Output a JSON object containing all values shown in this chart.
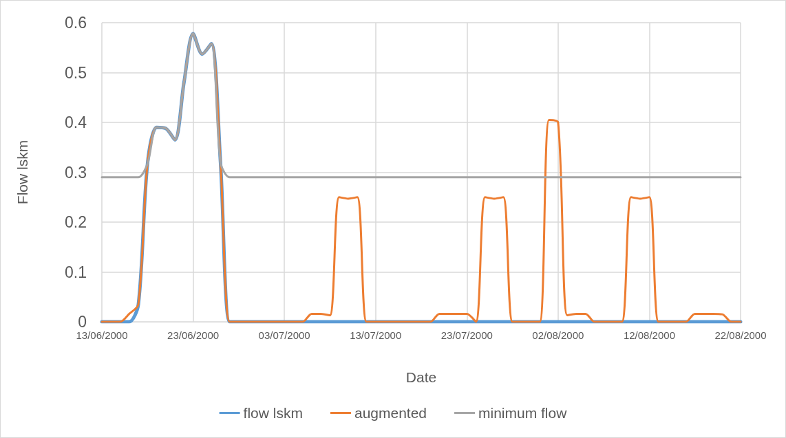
{
  "chart_data": {
    "type": "line",
    "xlabel": "Date",
    "ylabel": "Flow lskm",
    "x": [
      "2000-06-13",
      "2000-06-14",
      "2000-06-15",
      "2000-06-16",
      "2000-06-17",
      "2000-06-18",
      "2000-06-19",
      "2000-06-20",
      "2000-06-21",
      "2000-06-22",
      "2000-06-23",
      "2000-06-24",
      "2000-06-25",
      "2000-06-26",
      "2000-06-27",
      "2000-06-28",
      "2000-06-29",
      "2000-06-30",
      "2000-07-01",
      "2000-07-02",
      "2000-07-03",
      "2000-07-04",
      "2000-07-05",
      "2000-07-06",
      "2000-07-07",
      "2000-07-08",
      "2000-07-09",
      "2000-07-10",
      "2000-07-11",
      "2000-07-12",
      "2000-07-13",
      "2000-07-14",
      "2000-07-15",
      "2000-07-16",
      "2000-07-17",
      "2000-07-18",
      "2000-07-19",
      "2000-07-20",
      "2000-07-21",
      "2000-07-22",
      "2000-07-23",
      "2000-07-24",
      "2000-07-25",
      "2000-07-26",
      "2000-07-27",
      "2000-07-28",
      "2000-07-29",
      "2000-07-30",
      "2000-07-31",
      "2000-08-01",
      "2000-08-02",
      "2000-08-03",
      "2000-08-04",
      "2000-08-05",
      "2000-08-06",
      "2000-08-07",
      "2000-08-08",
      "2000-08-09",
      "2000-08-10",
      "2000-08-11",
      "2000-08-12",
      "2000-08-13",
      "2000-08-14",
      "2000-08-15",
      "2000-08-16",
      "2000-08-17",
      "2000-08-18",
      "2000-08-19",
      "2000-08-20",
      "2000-08-21",
      "2000-08-22"
    ],
    "series": [
      {
        "name": "flow lskm",
        "color": "#5b9bd5",
        "values": [
          0,
          0,
          0,
          0,
          0.035,
          0.317,
          0.39,
          0.388,
          0.365,
          0.48,
          0.578,
          0.537,
          0.558,
          0.32,
          0,
          0,
          0,
          0,
          0,
          0,
          0,
          0,
          0,
          0,
          0,
          0,
          0,
          0,
          0,
          0,
          0,
          0,
          0,
          0,
          0,
          0,
          0,
          0,
          0,
          0,
          0,
          0,
          0,
          0,
          0,
          0,
          0,
          0,
          0,
          0,
          0,
          0,
          0,
          0,
          0,
          0,
          0,
          0,
          0,
          0,
          0,
          0,
          0,
          0,
          0,
          0,
          0,
          0,
          0,
          0,
          0
        ]
      },
      {
        "name": "augmented",
        "color": "#ed7d31",
        "values": [
          0,
          0,
          0,
          0.016,
          0.035,
          0.317,
          0.39,
          0.388,
          0.365,
          0.48,
          0.578,
          0.537,
          0.558,
          0.32,
          0,
          0,
          0,
          0,
          0,
          0,
          0,
          0,
          0,
          0.016,
          0.016,
          0.013,
          0.25,
          0.247,
          0.25,
          0,
          0,
          0,
          0,
          0,
          0,
          0,
          0,
          0.016,
          0.016,
          0.016,
          0.016,
          0,
          0.25,
          0.247,
          0.25,
          0,
          0,
          0,
          0,
          0.405,
          0.4,
          0.013,
          0.016,
          0.016,
          0,
          0,
          0,
          0,
          0.25,
          0.247,
          0.25,
          0,
          0,
          0,
          0,
          0.016,
          0.016,
          0.016,
          0.015,
          0,
          0
        ]
      },
      {
        "name": "minimum flow",
        "color": "#a5a5a5",
        "values": [
          0.29,
          0.29,
          0.29,
          0.29,
          0.29,
          0.317,
          0.39,
          0.388,
          0.365,
          0.48,
          0.578,
          0.537,
          0.558,
          0.32,
          0.29,
          0.29,
          0.29,
          0.29,
          0.29,
          0.29,
          0.29,
          0.29,
          0.29,
          0.29,
          0.29,
          0.29,
          0.29,
          0.29,
          0.29,
          0.29,
          0.29,
          0.29,
          0.29,
          0.29,
          0.29,
          0.29,
          0.29,
          0.29,
          0.29,
          0.29,
          0.29,
          0.29,
          0.29,
          0.29,
          0.29,
          0.29,
          0.29,
          0.29,
          0.29,
          0.29,
          0.29,
          0.29,
          0.29,
          0.29,
          0.29,
          0.29,
          0.29,
          0.29,
          0.29,
          0.29,
          0.29,
          0.29,
          0.29,
          0.29,
          0.29,
          0.29,
          0.29,
          0.29,
          0.29,
          0.29,
          0.29
        ]
      }
    ],
    "xlim": [
      "2000-06-13",
      "2000-08-22"
    ],
    "xticks": [
      {
        "value": "2000-06-13",
        "label": "13/06/2000"
      },
      {
        "value": "2000-06-23",
        "label": "23/06/2000"
      },
      {
        "value": "2000-07-03",
        "label": "03/07/2000"
      },
      {
        "value": "2000-07-13",
        "label": "13/07/2000"
      },
      {
        "value": "2000-07-23",
        "label": "23/07/2000"
      },
      {
        "value": "2000-08-02",
        "label": "02/08/2000"
      },
      {
        "value": "2000-08-12",
        "label": "12/08/2000"
      },
      {
        "value": "2000-08-22",
        "label": "22/08/2000"
      }
    ],
    "ylim": [
      0,
      0.6
    ],
    "yticks": [
      0,
      0.1,
      0.2,
      0.3,
      0.4,
      0.5,
      0.6
    ],
    "grid": true,
    "legend": "bottom",
    "marker": "none",
    "line_style": "solid"
  }
}
